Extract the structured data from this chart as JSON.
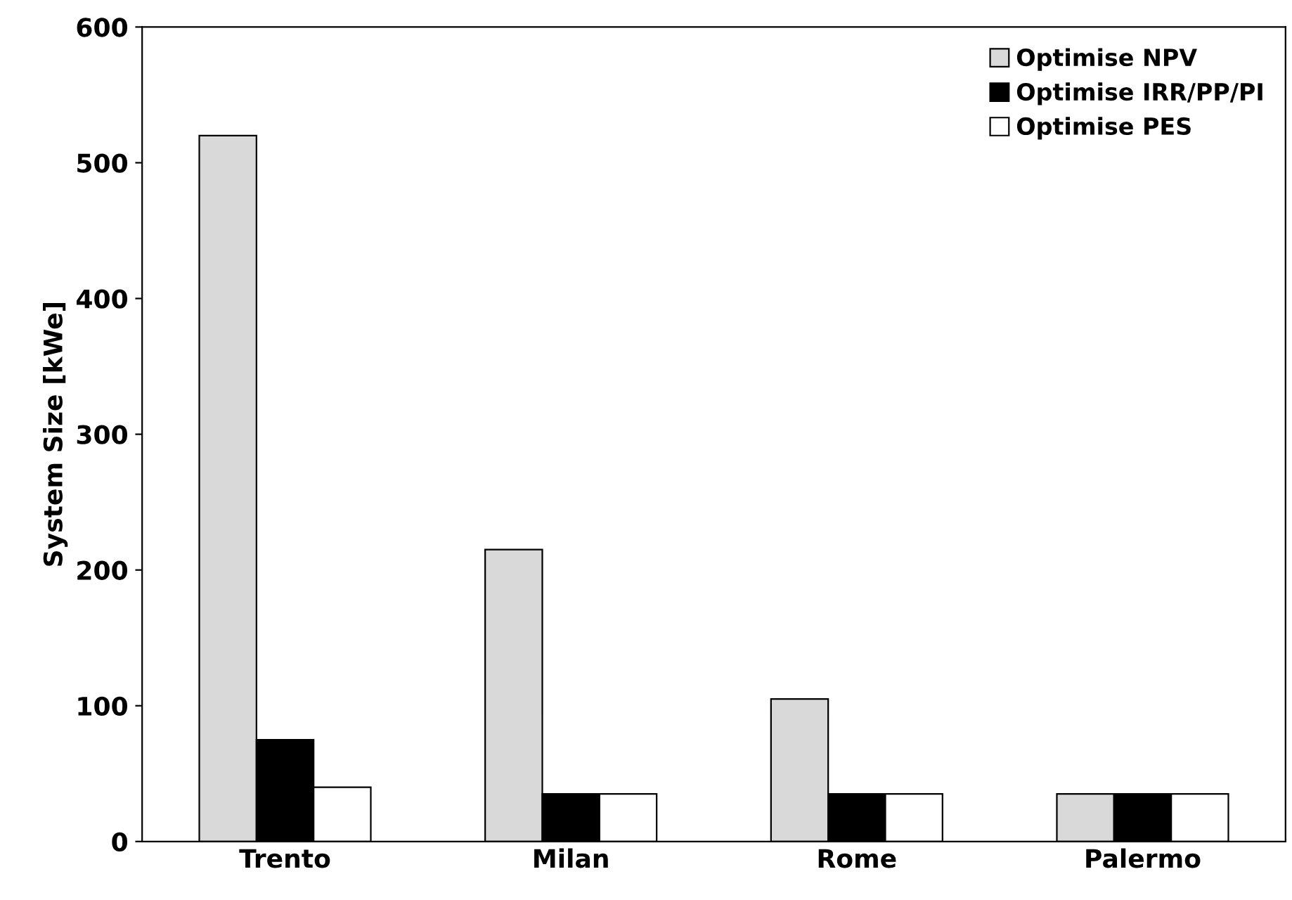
{
  "chart_data": {
    "type": "bar",
    "ylabel": "System Size [kWe]",
    "categories": [
      "Trento",
      "Milan",
      "Rome",
      "Palermo"
    ],
    "series": [
      {
        "name": "Optimise NPV",
        "color": "#d9d9d9",
        "values": [
          520,
          215,
          105,
          35
        ]
      },
      {
        "name": "Optimise IRR/PP/PI",
        "color": "#000000",
        "values": [
          75,
          35,
          35,
          35
        ]
      },
      {
        "name": "Optimise PES",
        "color": "#ffffff",
        "values": [
          40,
          35,
          35,
          35
        ]
      }
    ],
    "ylim": [
      0,
      600
    ],
    "yticks": [
      0,
      100,
      200,
      300,
      400,
      500,
      600
    ],
    "grid": false,
    "legend": "top right"
  }
}
